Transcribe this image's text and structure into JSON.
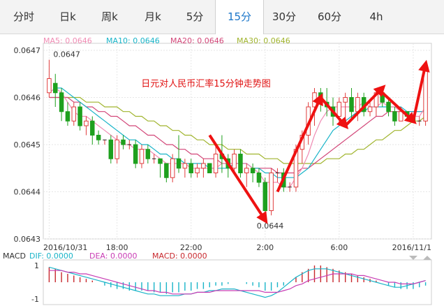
{
  "tabs": [
    {
      "label": "分时"
    },
    {
      "label": "日k"
    },
    {
      "label": "周k"
    },
    {
      "label": "月k"
    },
    {
      "label": "5分"
    },
    {
      "label": "15分",
      "active": true
    },
    {
      "label": "30分"
    },
    {
      "label": "60分"
    },
    {
      "label": "4h"
    }
  ],
  "legend": [
    {
      "text": "MA5: 0.0646",
      "color": "#f08cb4"
    },
    {
      "text": "MA10: 0.0646",
      "color": "#19b4c8"
    },
    {
      "text": "MA20: 0.0646",
      "color": "#d24678"
    },
    {
      "text": "MA30: 0.0646",
      "color": "#a0b42d"
    }
  ],
  "macd_legend": [
    {
      "text": "MACD",
      "color": "#333333"
    },
    {
      "text": "DIF: 0.0000",
      "color": "#19b4c8"
    },
    {
      "text": "DEA: 0.0000",
      "color": "#c83cb4"
    },
    {
      "text": "MACD: 0.0000",
      "color": "#c8282d"
    }
  ],
  "annotation": {
    "title": "日元对人民币汇率15分钟走势图",
    "color": "#e01010"
  },
  "colors": {
    "up": "#e03c3c",
    "down": "#1ea01e",
    "arrow": "#ee1111"
  },
  "chart_data": {
    "type": "candlestick",
    "title": "日元对人民币汇率15分钟走势图",
    "y_ticks": [
      "0.0647",
      "0.0646",
      "0.0645",
      "0.0644",
      "0.0643"
    ],
    "ylim": [
      0.0643,
      0.0647
    ],
    "x_ticks": [
      "2016/10/31",
      "18:00",
      "22:00",
      "2:00",
      "6:00",
      "2016/11/1"
    ],
    "high_label": "0.0647",
    "low_label": "0.0644",
    "macd_ticks": [
      "1",
      "-1"
    ],
    "ohlc": [
      [
        0.06461,
        0.06464,
        0.0646,
        0.06468
      ],
      [
        0.06463,
        0.06461,
        0.06458,
        0.06465
      ],
      [
        0.06461,
        0.06457,
        0.06455,
        0.06462
      ],
      [
        0.06457,
        0.06455,
        0.06454,
        0.06459
      ],
      [
        0.06455,
        0.06458,
        0.06454,
        0.06459
      ],
      [
        0.06458,
        0.06454,
        0.06453,
        0.06459
      ],
      [
        0.06454,
        0.06455,
        0.06452,
        0.06456
      ],
      [
        0.06455,
        0.06452,
        0.0645,
        0.06456
      ],
      [
        0.06452,
        0.06451,
        0.0645,
        0.06453
      ],
      [
        0.06451,
        0.06451,
        0.0645,
        0.06451
      ],
      [
        0.06451,
        0.06447,
        0.06446,
        0.06452
      ],
      [
        0.06447,
        0.06451,
        0.06446,
        0.06452
      ],
      [
        0.06451,
        0.0645,
        0.06449,
        0.06452
      ],
      [
        0.0645,
        0.0645,
        0.06449,
        0.06451
      ],
      [
        0.0645,
        0.06446,
        0.06445,
        0.06451
      ],
      [
        0.06446,
        0.06449,
        0.06445,
        0.0645
      ],
      [
        0.06449,
        0.06447,
        0.06446,
        0.0645
      ],
      [
        0.06447,
        0.06447,
        0.06446,
        0.06448
      ],
      [
        0.06447,
        0.06446,
        0.06443,
        0.06447
      ],
      [
        0.06446,
        0.06443,
        0.06442,
        0.06446
      ],
      [
        0.06443,
        0.06447,
        0.06442,
        0.06448
      ],
      [
        0.06447,
        0.06445,
        0.06444,
        0.06452
      ],
      [
        0.06445,
        0.06446,
        0.06443,
        0.06447
      ],
      [
        0.06446,
        0.06444,
        0.06443,
        0.06447
      ],
      [
        0.06444,
        0.06445,
        0.06443,
        0.06446
      ],
      [
        0.06445,
        0.06446,
        0.06443,
        0.06447
      ],
      [
        0.06446,
        0.06444,
        0.06444,
        0.06446
      ],
      [
        0.06444,
        0.06448,
        0.06443,
        0.0645
      ],
      [
        0.06448,
        0.06447,
        0.06444,
        0.06452
      ],
      [
        0.06447,
        0.06445,
        0.06443,
        0.06448
      ],
      [
        0.06445,
        0.06448,
        0.06444,
        0.06449
      ],
      [
        0.06448,
        0.06444,
        0.06443,
        0.06449
      ],
      [
        0.06444,
        0.06445,
        0.06441,
        0.06446
      ],
      [
        0.06445,
        0.06444,
        0.06442,
        0.06446
      ],
      [
        0.06444,
        0.06442,
        0.06441,
        0.06445
      ],
      [
        0.06442,
        0.06436,
        0.06434,
        0.06443
      ],
      [
        0.06436,
        0.06444,
        0.06435,
        0.06445
      ],
      [
        0.06444,
        0.06444,
        0.06442,
        0.06445
      ],
      [
        0.06444,
        0.06441,
        0.0644,
        0.06445
      ],
      [
        0.06441,
        0.06441,
        0.0644,
        0.06442
      ],
      [
        0.06441,
        0.06449,
        0.0644,
        0.0645
      ],
      [
        0.06449,
        0.06452,
        0.06446,
        0.06453
      ],
      [
        0.06452,
        0.06458,
        0.0645,
        0.06459
      ],
      [
        0.06458,
        0.06461,
        0.06454,
        0.06462
      ],
      [
        0.06461,
        0.06459,
        0.06457,
        0.06462
      ],
      [
        0.06459,
        0.06458,
        0.06456,
        0.06462
      ],
      [
        0.06458,
        0.06456,
        0.06454,
        0.0646
      ],
      [
        0.06456,
        0.06459,
        0.06454,
        0.0646
      ],
      [
        0.06459,
        0.0646,
        0.06455,
        0.06461
      ],
      [
        0.0646,
        0.06457,
        0.06455,
        0.06462
      ],
      [
        0.06457,
        0.0646,
        0.06455,
        0.06461
      ],
      [
        0.0646,
        0.06457,
        0.06456,
        0.06461
      ],
      [
        0.06457,
        0.06458,
        0.06456,
        0.06459
      ],
      [
        0.06458,
        0.06461,
        0.06456,
        0.06462
      ],
      [
        0.06461,
        0.06459,
        0.06458,
        0.06462
      ],
      [
        0.06459,
        0.06457,
        0.06456,
        0.0646
      ],
      [
        0.06457,
        0.06455,
        0.06454,
        0.06458
      ],
      [
        0.06455,
        0.06457,
        0.06455,
        0.06458
      ],
      [
        0.06457,
        0.06456,
        0.06455,
        0.06457
      ],
      [
        0.06456,
        0.06455,
        0.06455,
        0.06456
      ],
      [
        0.06455,
        0.06455,
        0.06454,
        0.06456
      ],
      [
        0.06455,
        0.06466,
        0.06454,
        0.06467
      ]
    ],
    "ma5": [
      0.06461,
      0.06462,
      0.06461,
      0.06459,
      0.06457,
      0.06456,
      0.06456,
      0.06455,
      0.06454,
      0.06453,
      0.06452,
      0.06451,
      0.0645,
      0.0645,
      0.06449,
      0.06449,
      0.06449,
      0.06448,
      0.06447,
      0.06446,
      0.06446,
      0.06446,
      0.06446,
      0.06445,
      0.06445,
      0.06445,
      0.06445,
      0.06445,
      0.06446,
      0.06446,
      0.06446,
      0.06446,
      0.06446,
      0.06445,
      0.06444,
      0.06442,
      0.06442,
      0.06442,
      0.06441,
      0.06441,
      0.06443,
      0.06445,
      0.06448,
      0.06452,
      0.06455,
      0.06457,
      0.06458,
      0.06458,
      0.06458,
      0.06458,
      0.06458,
      0.06459,
      0.06458,
      0.06458,
      0.06459,
      0.06458,
      0.06458,
      0.06457,
      0.06457,
      0.06456,
      0.06456,
      0.06458
    ],
    "ma10": [
      0.06461,
      0.06462,
      0.06462,
      0.06461,
      0.0646,
      0.06459,
      0.06458,
      0.06457,
      0.06456,
      0.06455,
      0.06454,
      0.06453,
      0.06452,
      0.06451,
      0.06451,
      0.0645,
      0.0645,
      0.06449,
      0.06448,
      0.06448,
      0.06447,
      0.06447,
      0.06446,
      0.06446,
      0.06446,
      0.06446,
      0.06445,
      0.06445,
      0.06445,
      0.06445,
      0.06446,
      0.06446,
      0.06446,
      0.06445,
      0.06445,
      0.06444,
      0.06444,
      0.06443,
      0.06443,
      0.06443,
      0.06443,
      0.06444,
      0.06445,
      0.06447,
      0.06449,
      0.06451,
      0.06453,
      0.06454,
      0.06455,
      0.06456,
      0.06457,
      0.06457,
      0.06458,
      0.06458,
      0.06458,
      0.06458,
      0.06458,
      0.06458,
      0.06457,
      0.06457,
      0.06457,
      0.06457
    ],
    "ma20": [
      0.0646,
      0.0646,
      0.0646,
      0.0646,
      0.06459,
      0.06459,
      0.06458,
      0.06458,
      0.06457,
      0.06457,
      0.06456,
      0.06456,
      0.06455,
      0.06454,
      0.06454,
      0.06453,
      0.06452,
      0.06452,
      0.06451,
      0.0645,
      0.0645,
      0.06449,
      0.06449,
      0.06448,
      0.06448,
      0.06447,
      0.06447,
      0.06447,
      0.06446,
      0.06446,
      0.06446,
      0.06446,
      0.06446,
      0.06445,
      0.06445,
      0.06445,
      0.06445,
      0.06444,
      0.06444,
      0.06444,
      0.06444,
      0.06445,
      0.06445,
      0.06446,
      0.06447,
      0.06448,
      0.06449,
      0.0645,
      0.06451,
      0.06452,
      0.06453,
      0.06454,
      0.06455,
      0.06456,
      0.06456,
      0.06457,
      0.06457,
      0.06457,
      0.06457,
      0.06457,
      0.06457,
      0.06457
    ],
    "ma30": [
      0.0646,
      0.0646,
      0.0646,
      0.0646,
      0.0646,
      0.0646,
      0.06459,
      0.06459,
      0.06459,
      0.06458,
      0.06458,
      0.06458,
      0.06457,
      0.06457,
      0.06456,
      0.06456,
      0.06455,
      0.06455,
      0.06454,
      0.06454,
      0.06453,
      0.06453,
      0.06452,
      0.06452,
      0.06451,
      0.06451,
      0.0645,
      0.0645,
      0.0645,
      0.06449,
      0.06449,
      0.06449,
      0.06448,
      0.06448,
      0.06448,
      0.06447,
      0.06447,
      0.06447,
      0.06446,
      0.06446,
      0.06446,
      0.06446,
      0.06446,
      0.06446,
      0.06446,
      0.06447,
      0.06447,
      0.06447,
      0.06448,
      0.06448,
      0.06449,
      0.06449,
      0.0645,
      0.06451,
      0.06451,
      0.06452,
      0.06453,
      0.06453,
      0.06454,
      0.06455,
      0.06455,
      0.06456
    ],
    "macd_hist": [
      0.9,
      0.8,
      0.6,
      0.5,
      0.4,
      0.3,
      0.2,
      0.1,
      0.0,
      -0.2,
      -0.3,
      -0.4,
      -0.4,
      -0.5,
      -0.5,
      -0.5,
      -0.5,
      -0.6,
      -0.6,
      -0.7,
      -0.6,
      -0.6,
      -0.5,
      -0.5,
      -0.4,
      -0.4,
      -0.3,
      -0.2,
      -0.2,
      -0.1,
      0.0,
      0.0,
      -0.1,
      -0.2,
      -0.3,
      -0.5,
      -0.5,
      -0.3,
      -0.2,
      0.0,
      0.3,
      0.6,
      0.8,
      1.0,
      1.0,
      0.9,
      0.8,
      0.7,
      0.6,
      0.5,
      0.4,
      0.3,
      0.2,
      0.1,
      0.0,
      -0.2,
      -0.3,
      -0.4,
      -0.4,
      -0.4,
      -0.3,
      -0.2
    ],
    "dif": [
      0.9,
      0.8,
      0.7,
      0.6,
      0.5,
      0.4,
      0.3,
      0.2,
      0.1,
      0.0,
      -0.1,
      -0.2,
      -0.3,
      -0.4,
      -0.5,
      -0.6,
      -0.7,
      -0.7,
      -0.8,
      -0.8,
      -0.8,
      -0.8,
      -0.7,
      -0.7,
      -0.6,
      -0.6,
      -0.5,
      -0.5,
      -0.4,
      -0.4,
      -0.4,
      -0.5,
      -0.6,
      -0.7,
      -0.8,
      -0.9,
      -0.8,
      -0.6,
      -0.3,
      0.0,
      0.3,
      0.5,
      0.7,
      0.8,
      0.8,
      0.8,
      0.7,
      0.6,
      0.5,
      0.4,
      0.3,
      0.2,
      0.1,
      0.0,
      -0.1,
      -0.2,
      -0.3,
      -0.3,
      -0.2,
      -0.1,
      0.0,
      0.1
    ],
    "dea": [
      0.7,
      0.7,
      0.7,
      0.6,
      0.6,
      0.5,
      0.5,
      0.4,
      0.3,
      0.2,
      0.1,
      0.0,
      -0.1,
      -0.2,
      -0.3,
      -0.4,
      -0.5,
      -0.5,
      -0.6,
      -0.6,
      -0.7,
      -0.7,
      -0.7,
      -0.7,
      -0.6,
      -0.6,
      -0.6,
      -0.5,
      -0.5,
      -0.5,
      -0.5,
      -0.5,
      -0.5,
      -0.5,
      -0.5,
      -0.6,
      -0.6,
      -0.6,
      -0.5,
      -0.4,
      -0.2,
      -0.1,
      0.1,
      0.2,
      0.3,
      0.4,
      0.5,
      0.5,
      0.5,
      0.5,
      0.4,
      0.4,
      0.3,
      0.2,
      0.1,
      0.0,
      0.0,
      -0.1,
      -0.1,
      -0.1,
      0.0,
      0.1
    ]
  }
}
